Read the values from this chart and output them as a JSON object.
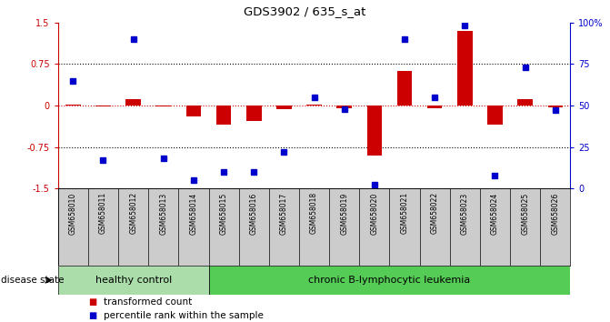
{
  "title": "GDS3902 / 635_s_at",
  "samples": [
    "GSM658010",
    "GSM658011",
    "GSM658012",
    "GSM658013",
    "GSM658014",
    "GSM658015",
    "GSM658016",
    "GSM658017",
    "GSM658018",
    "GSM658019",
    "GSM658020",
    "GSM658021",
    "GSM658022",
    "GSM658023",
    "GSM658024",
    "GSM658025",
    "GSM658026"
  ],
  "red_values": [
    0.02,
    -0.02,
    0.12,
    -0.02,
    -0.2,
    -0.35,
    -0.28,
    -0.07,
    0.02,
    -0.05,
    -0.9,
    0.62,
    -0.05,
    1.35,
    -0.35,
    0.12,
    -0.04
  ],
  "blue_percentile": [
    65,
    17,
    90,
    18,
    5,
    10,
    10,
    22,
    55,
    48,
    2,
    90,
    55,
    98,
    8,
    73,
    47
  ],
  "group1_count": 5,
  "group2_count": 12,
  "group1_label": "healthy control",
  "group2_label": "chronic B-lymphocytic leukemia",
  "legend_red": "transformed count",
  "legend_blue": "percentile rank within the sample",
  "disease_state_label": "disease state",
  "ylim": [
    -1.5,
    1.5
  ],
  "yticks_red": [
    -1.5,
    -0.75,
    0.0,
    0.75,
    1.5
  ],
  "yticks_red_labels": [
    "-1.5",
    "-0.75",
    "0",
    "0.75",
    "1.5"
  ],
  "yticks_blue_labels": [
    "0",
    "25",
    "50",
    "75",
    "100%"
  ],
  "bg_color": "#ffffff",
  "red_color": "#cc0000",
  "blue_color": "#0000cc",
  "group1_bg": "#aaddaa",
  "group2_bg": "#55cc55",
  "label_bg": "#cccccc",
  "dotted_line_color": "#000000",
  "zero_line_color": "#cc0000",
  "bar_width": 0.5
}
